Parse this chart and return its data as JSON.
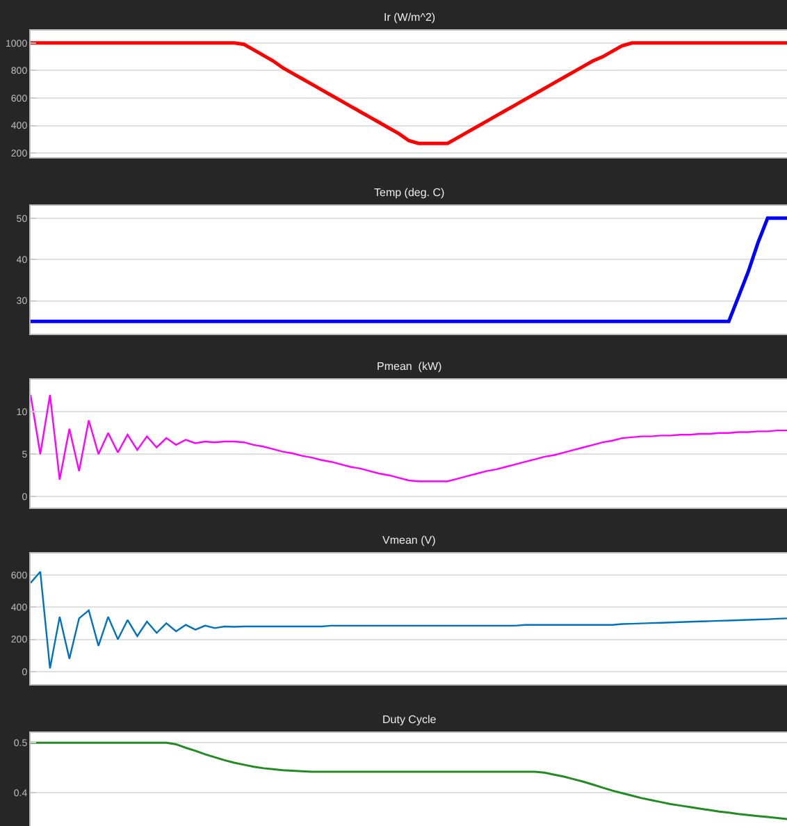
{
  "chart_data": [
    {
      "type": "line",
      "title": "Ir (W/m^2)",
      "categories": [
        null,
        null,
        null,
        null,
        null,
        null,
        null,
        null,
        null,
        null,
        null,
        null,
        null,
        null,
        null,
        null,
        null,
        null,
        null,
        null,
        null,
        null,
        null,
        null,
        null,
        null,
        null,
        null,
        null,
        null,
        null,
        null,
        null,
        null,
        null,
        null,
        null,
        null,
        null,
        null,
        null,
        null,
        null,
        null,
        null,
        null,
        null,
        null,
        null,
        null,
        null,
        null,
        null,
        null,
        null,
        null,
        null,
        null,
        null,
        null,
        null,
        null,
        null,
        null,
        null,
        null,
        null,
        null,
        null,
        null,
        null,
        null,
        null,
        null,
        null,
        null,
        null,
        null,
        null
      ],
      "series": [
        {
          "color": "#ff0000",
          "values": [
            1000,
            1000,
            1000,
            1000,
            1000,
            1000,
            1000,
            1000,
            1000,
            1000,
            1000,
            1000,
            1000,
            1000,
            1000,
            1000,
            1000,
            1000,
            1000,
            1000,
            1000,
            1000,
            990,
            950,
            910,
            870,
            820,
            780,
            740,
            700,
            660,
            620,
            580,
            540,
            500,
            460,
            420,
            380,
            340,
            290,
            270,
            270,
            270,
            270,
            310,
            350,
            390,
            430,
            470,
            510,
            550,
            590,
            630,
            670,
            710,
            750,
            790,
            830,
            870,
            900,
            940,
            980,
            1000,
            1000,
            1000,
            1000,
            1000,
            1000,
            1000,
            1000,
            1000,
            1000,
            1000,
            1000,
            1000,
            1000,
            1000,
            1000,
            1000
          ]
        }
      ],
      "ylim": [
        170,
        1090
      ],
      "yticks": [
        200,
        400,
        600,
        800,
        1000
      ],
      "grid": "y",
      "tick_labels": "y"
    },
    {
      "type": "line",
      "title": "Temp (deg. C)",
      "categories": [
        null,
        null,
        null,
        null,
        null,
        null,
        null,
        null,
        null,
        null,
        null,
        null,
        null,
        null,
        null,
        null,
        null,
        null,
        null,
        null,
        null,
        null,
        null,
        null,
        null,
        null,
        null,
        null,
        null,
        null,
        null,
        null,
        null,
        null,
        null,
        null,
        null,
        null,
        null,
        null,
        null,
        null,
        null,
        null,
        null,
        null,
        null,
        null,
        null,
        null,
        null,
        null,
        null,
        null,
        null,
        null,
        null,
        null,
        null,
        null,
        null,
        null,
        null,
        null,
        null,
        null,
        null,
        null,
        null,
        null,
        null,
        null,
        null,
        null,
        null,
        null,
        null,
        null,
        null
      ],
      "series": [
        {
          "color": "#0000ff",
          "values": [
            25,
            25,
            25,
            25,
            25,
            25,
            25,
            25,
            25,
            25,
            25,
            25,
            25,
            25,
            25,
            25,
            25,
            25,
            25,
            25,
            25,
            25,
            25,
            25,
            25,
            25,
            25,
            25,
            25,
            25,
            25,
            25,
            25,
            25,
            25,
            25,
            25,
            25,
            25,
            25,
            25,
            25,
            25,
            25,
            25,
            25,
            25,
            25,
            25,
            25,
            25,
            25,
            25,
            25,
            25,
            25,
            25,
            25,
            25,
            25,
            25,
            25,
            25,
            25,
            25,
            25,
            25,
            25,
            25,
            25,
            25,
            25,
            25,
            31,
            37,
            44,
            50,
            50,
            50
          ]
        }
      ],
      "ylim": [
        22,
        53
      ],
      "yticks": [
        30,
        40,
        50
      ],
      "grid": "y",
      "tick_labels": "y"
    },
    {
      "type": "line",
      "title": "Pmean  (kW)",
      "categories": [
        null,
        null,
        null,
        null,
        null,
        null,
        null,
        null,
        null,
        null,
        null,
        null,
        null,
        null,
        null,
        null,
        null,
        null,
        null,
        null,
        null,
        null,
        null,
        null,
        null,
        null,
        null,
        null,
        null,
        null,
        null,
        null,
        null,
        null,
        null,
        null,
        null,
        null,
        null,
        null,
        null,
        null,
        null,
        null,
        null,
        null,
        null,
        null,
        null,
        null,
        null,
        null,
        null,
        null,
        null,
        null,
        null,
        null,
        null,
        null,
        null,
        null,
        null,
        null,
        null,
        null,
        null,
        null,
        null,
        null,
        null,
        null,
        null,
        null,
        null,
        null,
        null,
        null,
        null
      ],
      "series": [
        {
          "color": "#ff00ff",
          "values": [
            12,
            5,
            12,
            2,
            8,
            3,
            9,
            5,
            7.5,
            5.2,
            7.3,
            5.5,
            7.1,
            5.8,
            6.9,
            6.1,
            6.7,
            6.3,
            6.5,
            6.4,
            6.5,
            6.5,
            6.4,
            6.1,
            5.9,
            5.6,
            5.3,
            5.1,
            4.8,
            4.6,
            4.3,
            4.1,
            3.8,
            3.5,
            3.3,
            3.0,
            2.7,
            2.5,
            2.2,
            1.9,
            1.8,
            1.8,
            1.8,
            1.8,
            2.1,
            2.4,
            2.7,
            3.0,
            3.2,
            3.5,
            3.8,
            4.1,
            4.4,
            4.7,
            4.9,
            5.2,
            5.5,
            5.8,
            6.1,
            6.4,
            6.6,
            6.9,
            7.0,
            7.1,
            7.1,
            7.2,
            7.2,
            7.3,
            7.3,
            7.4,
            7.4,
            7.5,
            7.5,
            7.6,
            7.6,
            7.7,
            7.7,
            7.8,
            7.8
          ]
        }
      ],
      "ylim": [
        -1.3,
        13.8
      ],
      "yticks": [
        0,
        5,
        10
      ],
      "grid": "y",
      "tick_labels": "y"
    },
    {
      "type": "line",
      "title": "Vmean (V)",
      "categories": [
        null,
        null,
        null,
        null,
        null,
        null,
        null,
        null,
        null,
        null,
        null,
        null,
        null,
        null,
        null,
        null,
        null,
        null,
        null,
        null,
        null,
        null,
        null,
        null,
        null,
        null,
        null,
        null,
        null,
        null,
        null,
        null,
        null,
        null,
        null,
        null,
        null,
        null,
        null,
        null,
        null,
        null,
        null,
        null,
        null,
        null,
        null,
        null,
        null,
        null,
        null,
        null,
        null,
        null,
        null,
        null,
        null,
        null,
        null,
        null,
        null,
        null,
        null,
        null,
        null,
        null,
        null,
        null,
        null,
        null,
        null,
        null,
        null,
        null,
        null,
        null,
        null,
        null,
        null
      ],
      "series": [
        {
          "color": "#0072bd",
          "values": [
            550,
            620,
            20,
            340,
            80,
            330,
            380,
            160,
            340,
            200,
            320,
            220,
            310,
            240,
            300,
            250,
            290,
            260,
            285,
            270,
            280,
            278,
            280,
            280,
            280,
            280,
            280,
            280,
            280,
            280,
            280,
            285,
            285,
            285,
            285,
            285,
            285,
            285,
            285,
            285,
            285,
            285,
            285,
            285,
            285,
            285,
            285,
            285,
            285,
            285,
            285,
            290,
            290,
            290,
            290,
            290,
            290,
            290,
            290,
            290,
            290,
            295,
            297,
            299,
            301,
            303,
            305,
            307,
            309,
            311,
            313,
            315,
            317,
            319,
            321,
            323,
            325,
            328,
            330
          ]
        }
      ],
      "ylim": [
        -78,
        733
      ],
      "yticks": [
        0,
        200,
        400,
        600
      ],
      "grid": "y",
      "tick_labels": "y"
    },
    {
      "type": "line",
      "title": "Duty Cycle",
      "categories": [
        null,
        null,
        null,
        null,
        null,
        null,
        null,
        null,
        null,
        null,
        null,
        null,
        null,
        null,
        null,
        null,
        null,
        null,
        null,
        null,
        null,
        null,
        null,
        null,
        null,
        null,
        null,
        null,
        null,
        null,
        null,
        null,
        null,
        null,
        null,
        null,
        null,
        null,
        null,
        null,
        null,
        null,
        null,
        null,
        null,
        null,
        null,
        null,
        null,
        null,
        null,
        null,
        null,
        null,
        null,
        null,
        null,
        null,
        null,
        null,
        null,
        null,
        null,
        null,
        null,
        null,
        null,
        null,
        null,
        null,
        null,
        null,
        null,
        null,
        null,
        null,
        null,
        null,
        null
      ],
      "series": [
        {
          "color": "#228b22",
          "values": [
            0.5,
            0.5,
            0.5,
            0.5,
            0.5,
            0.5,
            0.5,
            0.5,
            0.5,
            0.5,
            0.5,
            0.5,
            0.5,
            0.5,
            0.5,
            0.497,
            0.49,
            0.484,
            0.477,
            0.471,
            0.465,
            0.46,
            0.456,
            0.452,
            0.449,
            0.447,
            0.445,
            0.444,
            0.443,
            0.442,
            0.442,
            0.442,
            0.442,
            0.442,
            0.442,
            0.442,
            0.442,
            0.442,
            0.442,
            0.442,
            0.442,
            0.442,
            0.442,
            0.442,
            0.442,
            0.442,
            0.442,
            0.442,
            0.442,
            0.442,
            0.442,
            0.442,
            0.442,
            0.44,
            0.436,
            0.432,
            0.427,
            0.422,
            0.416,
            0.41,
            0.404,
            0.399,
            0.394,
            0.389,
            0.385,
            0.381,
            0.377,
            0.374,
            0.371,
            0.368,
            0.365,
            0.362,
            0.36,
            0.357,
            0.355,
            0.353,
            0.351,
            0.349,
            0.347
          ]
        }
      ],
      "ylim": [
        0.333,
        0.52
      ],
      "yticks": [
        0.4,
        0.5
      ],
      "grid": "y",
      "tick_labels": "y"
    }
  ]
}
